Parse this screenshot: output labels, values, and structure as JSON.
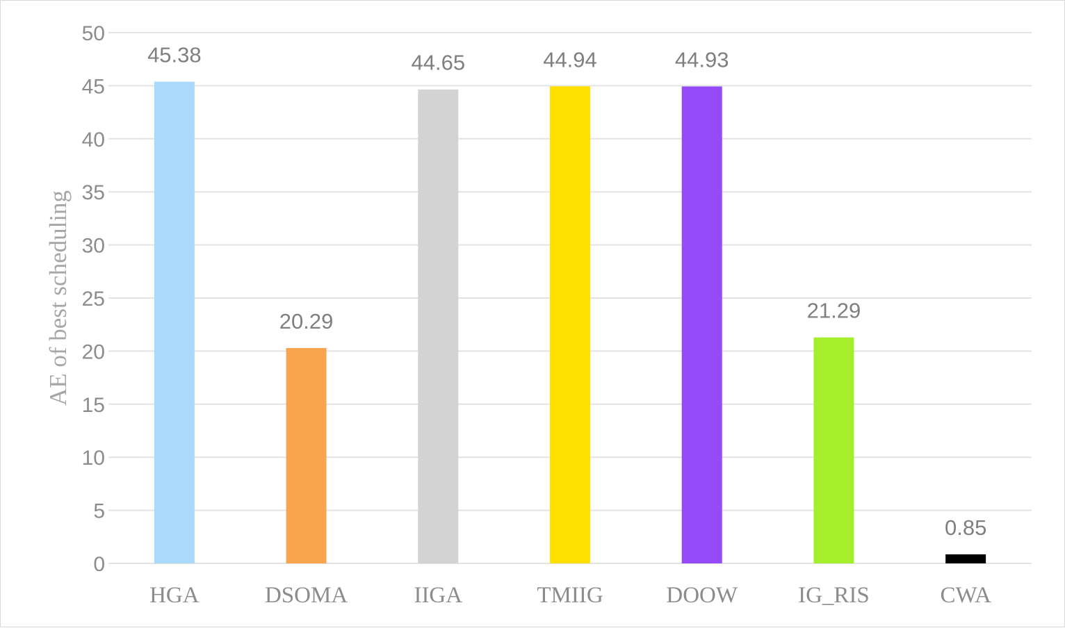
{
  "chart_data": {
    "type": "bar",
    "title": "",
    "xlabel": "",
    "ylabel": "AE of best scheduling",
    "categories": [
      "HGA",
      "DSOMA",
      "IIGA",
      "TMIIG",
      "DOOW",
      "IG_RIS",
      "CWA"
    ],
    "values": [
      45.38,
      20.29,
      44.65,
      44.94,
      44.93,
      21.29,
      0.85
    ],
    "value_labels": [
      "45.38",
      "20.29",
      "44.65",
      "44.94",
      "44.93",
      "21.29",
      "0.85"
    ],
    "bar_colors": [
      "#aad9fb",
      "#f9a54f",
      "#d3d3d3",
      "#ffe000",
      "#944af8",
      "#a4ee2c",
      "#000000"
    ],
    "ylim": [
      0,
      50
    ],
    "yticks": [
      0,
      5,
      10,
      15,
      20,
      25,
      30,
      35,
      40,
      45,
      50
    ],
    "grid": true,
    "legend": "none"
  }
}
